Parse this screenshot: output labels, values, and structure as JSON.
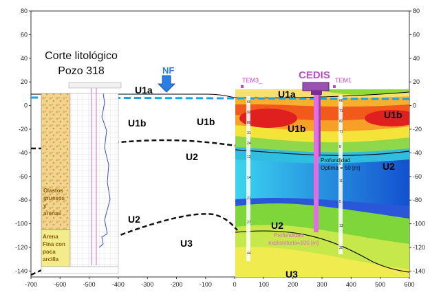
{
  "figure": {
    "title_line1": "Corte litológico",
    "title_line2": "Pozo 318",
    "nf_label": "NF",
    "cedis_label": "CEDIS",
    "tem3_label": "TEM3_",
    "tem1_label": "TEM1",
    "units": {
      "u1a_left": "U1a",
      "u1a_right": "U1a",
      "u1b_a": "U1b",
      "u1b_b": "U1b",
      "u1b_c": "U1b",
      "u1b_d": "U1b",
      "u2_a": "U2",
      "u2_b": "U2",
      "u2_c": "U2",
      "u2_d": "U2",
      "u3_a": "U3",
      "u3_b": "U3"
    },
    "litho_labels": {
      "clastos_1": "Clastos",
      "clastos_2": "gruesos",
      "clastos_3": "y",
      "clastos_4": "arenas",
      "arena_1": "Arena",
      "arena_2": "Fina con",
      "arena_3": "poca",
      "arena_4": "arcilla"
    },
    "annotations": {
      "optima_1": "Profundidad",
      "optima_2": "Optima = 50 [m]",
      "explor_1": "Profundidad",
      "explor_2": "exploratoria=100 [m]"
    },
    "axes": {
      "x_ticks": [
        -700,
        -600,
        -500,
        -400,
        -300,
        -200,
        -100,
        0,
        100,
        200,
        300,
        400,
        500,
        600
      ],
      "y_ticks": [
        80,
        60,
        40,
        20,
        0,
        -20,
        -40,
        -60,
        -80,
        -100,
        -120,
        -140
      ],
      "y_right_ticks": [
        80,
        60,
        40,
        20,
        0,
        -20,
        -40,
        -60,
        -80,
        -100,
        -120,
        -140
      ],
      "xlim": [
        -700,
        600
      ],
      "ylim": [
        -145,
        80
      ]
    },
    "colors": {
      "nf_arrow": "#2a7fe0",
      "water_line": "#1fa3e0",
      "cedis": "#b050c0",
      "well": "#e070e0",
      "tem": "#d040d0"
    }
  }
}
